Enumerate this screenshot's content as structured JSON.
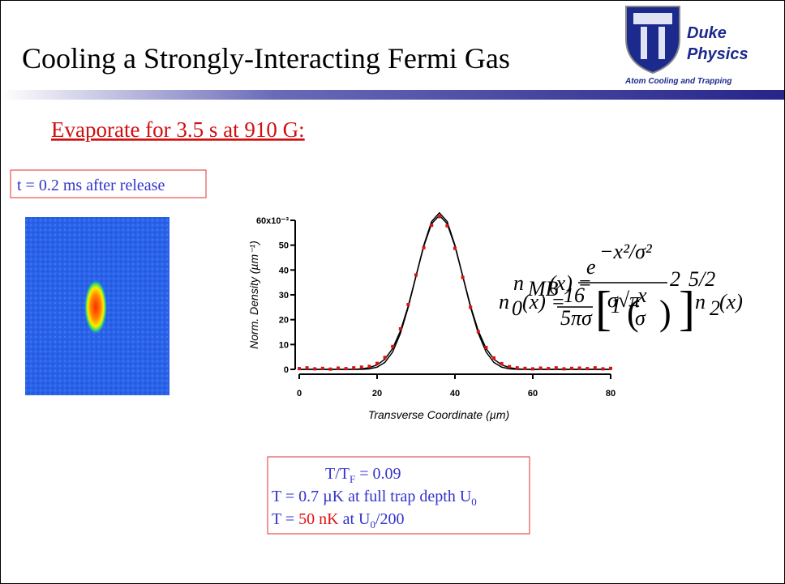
{
  "slide": {
    "title": "Cooling a Strongly-Interacting Fermi Gas",
    "logo": {
      "line1": "Duke",
      "line2": "Physics",
      "tagline": "Atom Cooling and Trapping"
    },
    "subtitle": "Evaporate for 3.5 s at 910 G:",
    "image_caption": "t = 0.2 ms after release",
    "equation": {
      "n1": "n",
      "sub1": "MB",
      "eq1": "(x) =",
      "num": "e",
      "exp": "−x²/σ²",
      "den": "σ√π",
      "n2": "n",
      "sub2": "0",
      "eq2": "(x) =",
      "frac_num": "16",
      "frac_den": "5πσ",
      "inner1": "1 −",
      "inner2": "x",
      "inner3": "σ",
      "pow1": "2",
      "pow2": "5/2",
      "n3": "n",
      "sub3": "2",
      "tail": "(x)"
    },
    "result": {
      "l1a": "T/T",
      "l1b": "F",
      "l1c": " = 0.09",
      "l2a": "T = 0.7 µK at full trap depth U",
      "l2b": "0",
      "l3a": "T = ",
      "l3b": "50 nK",
      "l3c": " at U",
      "l3d": "0",
      "l3e": "/200"
    }
  },
  "chart_data": {
    "type": "line",
    "x_label": "Transverse Coordinate (µm)",
    "y_label": "Norm. Density (µm⁻¹)",
    "x": [
      0,
      2,
      4,
      6,
      8,
      10,
      12,
      14,
      16,
      18,
      20,
      22,
      24,
      26,
      28,
      30,
      32,
      34,
      36,
      38,
      40,
      42,
      44,
      46,
      48,
      50,
      52,
      54,
      56,
      58,
      60,
      62,
      64,
      66,
      68,
      70,
      72,
      74,
      76,
      78,
      80
    ],
    "series": [
      {
        "color": "#000000",
        "style": "line",
        "values": [
          0,
          0,
          0,
          0,
          0,
          0,
          0,
          0,
          0.2,
          0.7,
          1.8,
          4.1,
          8.4,
          15.5,
          25.5,
          37.6,
          49.6,
          58.6,
          62,
          58.6,
          49.6,
          37.6,
          25.5,
          15.5,
          8.4,
          4.1,
          1.8,
          0.7,
          0.2,
          0,
          0,
          0,
          0,
          0,
          0,
          0,
          0,
          0,
          0,
          0,
          0
        ]
      },
      {
        "color": "#000000",
        "style": "line",
        "values": [
          0,
          0,
          0,
          0,
          0,
          0,
          0,
          0,
          0,
          0.2,
          0.9,
          2.8,
          7,
          14.5,
          25,
          37.5,
          50,
          59.5,
          63,
          59.5,
          50,
          37.5,
          25,
          14.5,
          7,
          2.8,
          0.9,
          0.2,
          0,
          0,
          0,
          0,
          0,
          0,
          0,
          0,
          0,
          0,
          0,
          0,
          0
        ]
      },
      {
        "color": "#dd1111",
        "style": "points",
        "values": [
          0.3,
          0.6,
          0.2,
          0.4,
          0.1,
          0.5,
          0.3,
          0.6,
          0.9,
          1.2,
          2.4,
          4.8,
          9.2,
          16.3,
          26.1,
          38.0,
          49.0,
          58.0,
          61.5,
          57.8,
          48.7,
          37.0,
          25.0,
          15.2,
          8.8,
          4.6,
          2.3,
          1.1,
          0.6,
          0.4,
          0.2,
          0.5,
          0.3,
          0.6,
          0.2,
          0.4,
          0.5,
          0.3,
          0.6,
          0.2,
          0.4
        ]
      }
    ],
    "xlim": [
      0,
      80
    ],
    "xticks": [
      0,
      20,
      40,
      60,
      80
    ],
    "ylim": [
      0,
      60
    ],
    "yticks": [
      0,
      10,
      20,
      30,
      40,
      50,
      {
        "value": 60,
        "label": "60x10⁻³"
      }
    ]
  }
}
